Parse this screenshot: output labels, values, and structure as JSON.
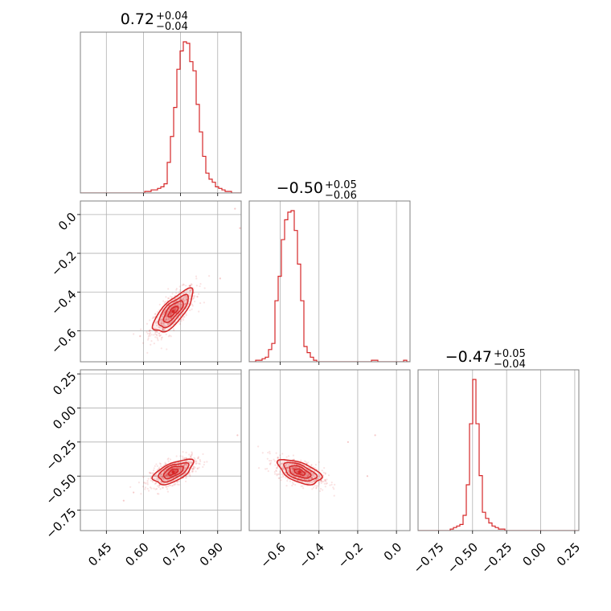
{
  "chart_data": {
    "type": "corner",
    "color": "#d62728",
    "grid": true,
    "panels": [
      {
        "id": "hist-0",
        "type": "histogram",
        "row": 0,
        "col": 0,
        "title": {
          "value": "0.72",
          "plus": "+0.04",
          "minus": "−0.04"
        },
        "xlim": [
          0.345,
          0.995
        ],
        "xticks": [
          0.45,
          0.6,
          0.75,
          0.9
        ],
        "hist": {
          "start": 0.345,
          "width": 0.013,
          "counts": [
            0,
            0,
            0,
            0,
            0,
            0,
            0,
            0,
            0,
            0,
            0,
            0,
            0,
            0,
            0,
            0,
            0,
            0,
            0,
            0,
            1,
            1,
            2,
            2,
            3,
            4,
            6,
            20,
            37,
            56,
            81,
            93,
            99,
            98,
            86,
            80,
            58,
            40,
            24,
            13,
            9,
            7,
            4,
            3,
            2,
            1,
            1,
            0,
            0,
            0
          ]
        }
      },
      {
        "id": "hist-1",
        "type": "histogram",
        "row": 1,
        "col": 1,
        "title": {
          "value": "−0.50",
          "plus": "+0.05",
          "minus": "−0.06"
        },
        "xlim": [
          -0.76,
          0.07
        ],
        "xticks": [
          -0.6,
          -0.4,
          -0.2,
          0.0
        ],
        "xtick_labels": [
          "−0.6",
          "−0.4",
          "−0.2",
          "0.0"
        ],
        "hist": {
          "start": -0.76,
          "width": 0.0166,
          "counts": [
            0,
            0,
            1,
            1,
            2,
            3,
            8,
            12,
            40,
            56,
            80,
            93,
            98,
            99,
            86,
            64,
            40,
            10,
            6,
            3,
            1,
            0,
            0,
            0,
            0,
            0,
            0,
            0,
            0,
            0,
            0,
            0,
            0,
            0,
            0,
            0,
            0,
            0,
            1,
            1,
            0,
            0,
            0,
            0,
            0,
            0,
            0,
            0,
            1,
            0
          ]
        }
      },
      {
        "id": "hist-2",
        "type": "histogram",
        "row": 2,
        "col": 2,
        "title": {
          "value": "−0.47",
          "plus": "+0.05",
          "minus": "−0.04"
        },
        "xlim": [
          -0.9,
          0.28
        ],
        "xticks": [
          -0.75,
          -0.5,
          -0.25,
          0.0,
          0.25
        ],
        "xtick_labels": [
          "−0.75",
          "−0.50",
          "−0.25",
          "0.00",
          "0.25"
        ],
        "hist": {
          "start": -0.9,
          "width": 0.0236,
          "counts": [
            0,
            0,
            0,
            0,
            0,
            0,
            0,
            0,
            0,
            0,
            1,
            2,
            3,
            4,
            10,
            30,
            70,
            99,
            70,
            36,
            12,
            8,
            5,
            3,
            2,
            1,
            1,
            0,
            0,
            0,
            0,
            0,
            0,
            0,
            0,
            0,
            0,
            0,
            0,
            0,
            0,
            0,
            0,
            0,
            0,
            0,
            0,
            0,
            0,
            0
          ]
        }
      },
      {
        "id": "scatter-1-0",
        "type": "contour2d",
        "row": 1,
        "col": 0,
        "xlim": [
          0.345,
          0.995
        ],
        "ylim": [
          -0.76,
          0.07
        ],
        "yticks": [
          -0.6,
          -0.4,
          -0.2,
          0.0
        ],
        "ytick_labels": [
          "−0.6",
          "−0.4",
          "−0.2",
          "0.0"
        ],
        "center": [
          0.72,
          -0.5
        ],
        "sigma": [
          0.04,
          0.055
        ],
        "rho": 0.75,
        "outliers": [
          [
            0.97,
            0.03
          ],
          [
            0.99,
            -0.07
          ],
          [
            0.91,
            -0.33
          ]
        ]
      },
      {
        "id": "scatter-2-0",
        "type": "contour2d",
        "row": 2,
        "col": 0,
        "xlim": [
          0.345,
          0.995
        ],
        "ylim": [
          -0.9,
          0.28
        ],
        "yticks": [
          -0.75,
          -0.5,
          -0.25,
          0.0,
          0.25
        ],
        "ytick_labels": [
          "−0.75",
          "−0.50",
          "−0.25",
          "0.00",
          "0.25"
        ],
        "center": [
          0.72,
          -0.47
        ],
        "sigma": [
          0.04,
          0.045
        ],
        "rho": 0.6,
        "outliers": [
          [
            0.52,
            -0.68
          ],
          [
            0.56,
            -0.62
          ],
          [
            0.98,
            -0.2
          ]
        ]
      },
      {
        "id": "scatter-2-1",
        "type": "contour2d",
        "row": 2,
        "col": 1,
        "xlim": [
          -0.76,
          0.07
        ],
        "ylim": [
          -0.9,
          0.28
        ],
        "center": [
          -0.5,
          -0.47
        ],
        "sigma": [
          0.055,
          0.045
        ],
        "rho": -0.55,
        "outliers": [
          [
            -0.11,
            -0.2
          ],
          [
            -0.15,
            -0.5
          ],
          [
            -0.25,
            -0.25
          ]
        ]
      }
    ],
    "bottom_xticks": [
      {
        "col": 0,
        "ticks": [
          0.45,
          0.6,
          0.75,
          0.9
        ],
        "labels": [
          "0.45",
          "0.60",
          "0.75",
          "0.90"
        ]
      },
      {
        "col": 1,
        "ticks": [
          -0.6,
          -0.4,
          -0.2,
          0.0
        ],
        "labels": [
          "−0.6",
          "−0.4",
          "−0.2",
          "0.0"
        ]
      },
      {
        "col": 2,
        "ticks": [
          -0.75,
          -0.5,
          -0.25,
          0.0,
          0.25
        ],
        "labels": [
          "−0.75",
          "−0.50",
          "−0.25",
          "0.00",
          "0.25"
        ]
      }
    ],
    "left_yticks": [
      {
        "row": 1,
        "ticks": [
          -0.6,
          -0.4,
          -0.2,
          0.0
        ],
        "labels": [
          "−0.6",
          "−0.4",
          "−0.2",
          "0.0"
        ]
      },
      {
        "row": 2,
        "ticks": [
          -0.75,
          -0.5,
          -0.25,
          0.0,
          0.25
        ],
        "labels": [
          "−0.75",
          "−0.50",
          "−0.25",
          "0.00",
          "0.25"
        ]
      }
    ]
  }
}
